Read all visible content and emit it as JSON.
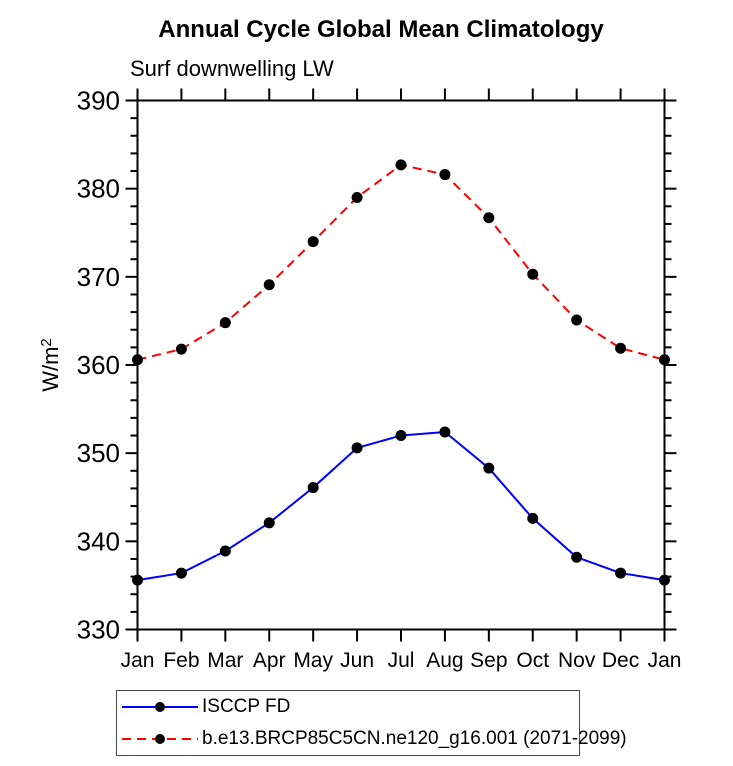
{
  "chart_data": {
    "type": "line",
    "title": "Annual Cycle Global Mean Climatology",
    "subtitle": "Surf downwelling LW",
    "ylabel": "W/m²",
    "xlabel": "",
    "categories": [
      "Jan",
      "Feb",
      "Mar",
      "Apr",
      "May",
      "Jun",
      "Jul",
      "Aug",
      "Sep",
      "Oct",
      "Nov",
      "Dec",
      "Jan"
    ],
    "ylim": [
      330,
      390
    ],
    "yticks_major": [
      330,
      340,
      350,
      360,
      370,
      380,
      390
    ],
    "ytick_minor_step": 2,
    "grid": false,
    "legend_position": "bottom-left",
    "axis_color": "#000000",
    "text_color": "#000000",
    "series": [
      {
        "name": "ISCCP FD",
        "line_style": "solid",
        "color": "#0000ff",
        "marker": "circle",
        "marker_color": "#000000",
        "values": [
          335.6,
          336.4,
          338.9,
          342.1,
          346.1,
          350.6,
          352.0,
          352.4,
          348.3,
          342.6,
          338.2,
          336.4,
          335.6
        ]
      },
      {
        "name": "b.e13.BRCP85C5CN.ne120_g16.001 (2071-2099)",
        "line_style": "dashed",
        "color": "#ff0000",
        "marker": "circle",
        "marker_color": "#000000",
        "values": [
          360.6,
          361.8,
          364.8,
          369.1,
          374.0,
          379.0,
          382.7,
          381.6,
          376.7,
          370.3,
          365.1,
          361.9,
          360.6
        ]
      }
    ]
  }
}
